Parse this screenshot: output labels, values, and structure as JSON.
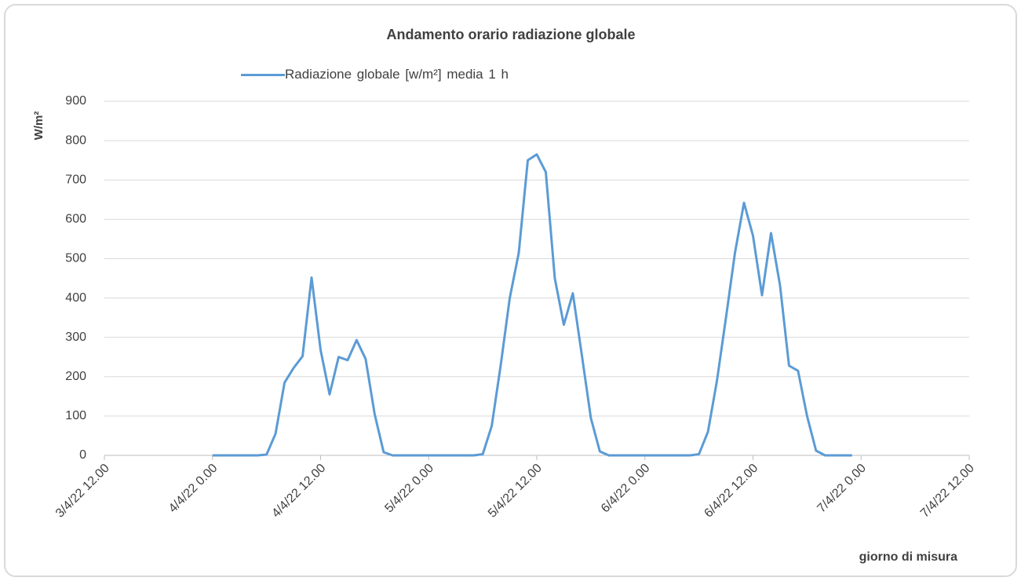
{
  "chart_data": {
    "type": "line",
    "title": "Andamento orario radiazione globale",
    "y_label": "W/m²",
    "x_label": "giorno di misura",
    "x": [
      "2022-04-04T00:00",
      "2022-04-04T01:00",
      "2022-04-04T02:00",
      "2022-04-04T03:00",
      "2022-04-04T04:00",
      "2022-04-04T05:00",
      "2022-04-04T06:00",
      "2022-04-04T07:00",
      "2022-04-04T08:00",
      "2022-04-04T09:00",
      "2022-04-04T10:00",
      "2022-04-04T11:00",
      "2022-04-04T12:00",
      "2022-04-04T13:00",
      "2022-04-04T14:00",
      "2022-04-04T15:00",
      "2022-04-04T16:00",
      "2022-04-04T17:00",
      "2022-04-04T18:00",
      "2022-04-04T19:00",
      "2022-04-04T20:00",
      "2022-04-04T21:00",
      "2022-04-04T22:00",
      "2022-04-04T23:00",
      "2022-04-05T00:00",
      "2022-04-05T01:00",
      "2022-04-05T02:00",
      "2022-04-05T03:00",
      "2022-04-05T04:00",
      "2022-04-05T05:00",
      "2022-04-05T06:00",
      "2022-04-05T07:00",
      "2022-04-05T08:00",
      "2022-04-05T09:00",
      "2022-04-05T10:00",
      "2022-04-05T11:00",
      "2022-04-05T12:00",
      "2022-04-05T13:00",
      "2022-04-05T14:00",
      "2022-04-05T15:00",
      "2022-04-05T16:00",
      "2022-04-05T17:00",
      "2022-04-05T18:00",
      "2022-04-05T19:00",
      "2022-04-05T20:00",
      "2022-04-05T21:00",
      "2022-04-05T22:00",
      "2022-04-05T23:00",
      "2022-04-06T00:00",
      "2022-04-06T01:00",
      "2022-04-06T02:00",
      "2022-04-06T03:00",
      "2022-04-06T04:00",
      "2022-04-06T05:00",
      "2022-04-06T06:00",
      "2022-04-06T07:00",
      "2022-04-06T08:00",
      "2022-04-06T09:00",
      "2022-04-06T10:00",
      "2022-04-06T11:00",
      "2022-04-06T12:00",
      "2022-04-06T13:00",
      "2022-04-06T14:00",
      "2022-04-06T15:00",
      "2022-04-06T16:00",
      "2022-04-06T17:00",
      "2022-04-06T18:00",
      "2022-04-06T19:00",
      "2022-04-06T20:00",
      "2022-04-06T21:00",
      "2022-04-06T22:00",
      "2022-04-06T23:00"
    ],
    "series": [
      {
        "name": "Radiazione globale  [w/m²]  media 1 h",
        "color": "#5b9bd5",
        "values": [
          0,
          0,
          0,
          0,
          0,
          0,
          2,
          55,
          185,
          222,
          252,
          452,
          268,
          155,
          250,
          242,
          293,
          245,
          105,
          8,
          0,
          0,
          0,
          0,
          0,
          0,
          0,
          0,
          0,
          0,
          3,
          75,
          230,
          400,
          515,
          750,
          765,
          720,
          450,
          332,
          412,
          255,
          95,
          10,
          0,
          0,
          0,
          0,
          0,
          0,
          0,
          0,
          0,
          0,
          3,
          60,
          190,
          350,
          515,
          642,
          558,
          407,
          565,
          432,
          228,
          215,
          100,
          12,
          0,
          0,
          0,
          0
        ]
      }
    ],
    "xlim": [
      "2022-04-03T12:00",
      "2022-04-07T12:00"
    ],
    "xticks": [
      {
        "value": "2022-04-03T12:00",
        "label": "3/4/22 12.00"
      },
      {
        "value": "2022-04-04T00:00",
        "label": "4/4/22 0.00"
      },
      {
        "value": "2022-04-04T12:00",
        "label": "4/4/22 12.00"
      },
      {
        "value": "2022-04-05T00:00",
        "label": "5/4/22 0.00"
      },
      {
        "value": "2022-04-05T12:00",
        "label": "5/4/22 12.00"
      },
      {
        "value": "2022-04-06T00:00",
        "label": "6/4/22 0.00"
      },
      {
        "value": "2022-04-06T12:00",
        "label": "6/4/22 12.00"
      },
      {
        "value": "2022-04-07T00:00",
        "label": "7/4/22 0.00"
      },
      {
        "value": "2022-04-07T12:00",
        "label": "7/4/22 12.00"
      }
    ],
    "ylim": [
      0,
      900
    ],
    "yticks": [
      0,
      100,
      200,
      300,
      400,
      500,
      600,
      700,
      800,
      900
    ],
    "grid": true
  }
}
